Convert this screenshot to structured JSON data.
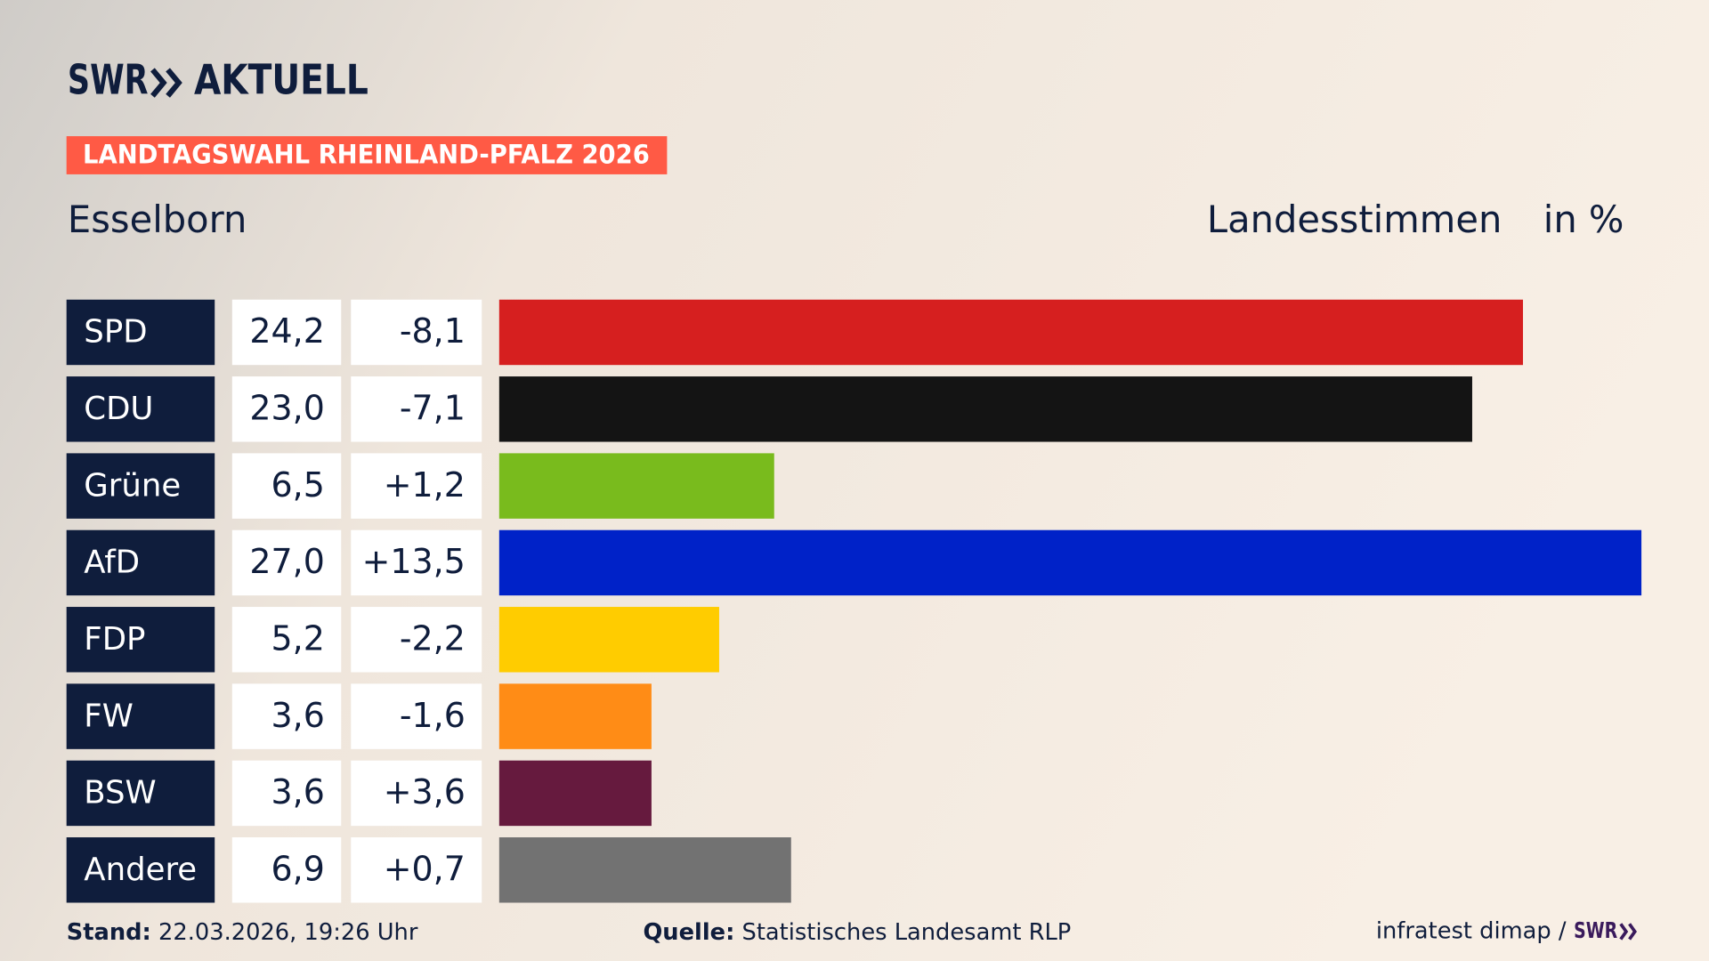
{
  "header": {
    "logo_left": "SWR",
    "logo_right": "AKTUELL",
    "badge": "LANDTAGSWAHL RHEINLAND-PFALZ 2026",
    "place": "Esselborn",
    "vote_type": "Landesstimmen",
    "unit": "in %"
  },
  "chart_data": {
    "type": "bar",
    "categories": [
      "SPD",
      "CDU",
      "Grüne",
      "AfD",
      "FDP",
      "FW",
      "BSW",
      "Andere"
    ],
    "values": [
      24.2,
      23.0,
      6.5,
      27.0,
      5.2,
      3.6,
      3.6,
      6.9
    ],
    "value_labels": [
      "24,2",
      "23,0",
      "6,5",
      "27,0",
      "5,2",
      "3,6",
      "3,6",
      "6,9"
    ],
    "changes": [
      -8.1,
      -7.1,
      1.2,
      13.5,
      -2.2,
      -1.6,
      3.6,
      0.7
    ],
    "change_labels": [
      "-8,1",
      "-7,1",
      "+1,2",
      "+13,5",
      "-2,2",
      "-1,6",
      "+3,6",
      "+0,7"
    ],
    "colors": [
      "#d61f1f",
      "#141414",
      "#79bb1d",
      "#0022c8",
      "#ffcc00",
      "#ff8c16",
      "#661a3e",
      "#727272"
    ]
  },
  "footer": {
    "stand_label": "Stand:",
    "stand": "22.03.2026, 19:26 Uhr",
    "source_label": "Quelle:",
    "source": "Statistisches Landesamt RLP",
    "credit": "infratest dimap /",
    "credit_logo": "SWR"
  }
}
